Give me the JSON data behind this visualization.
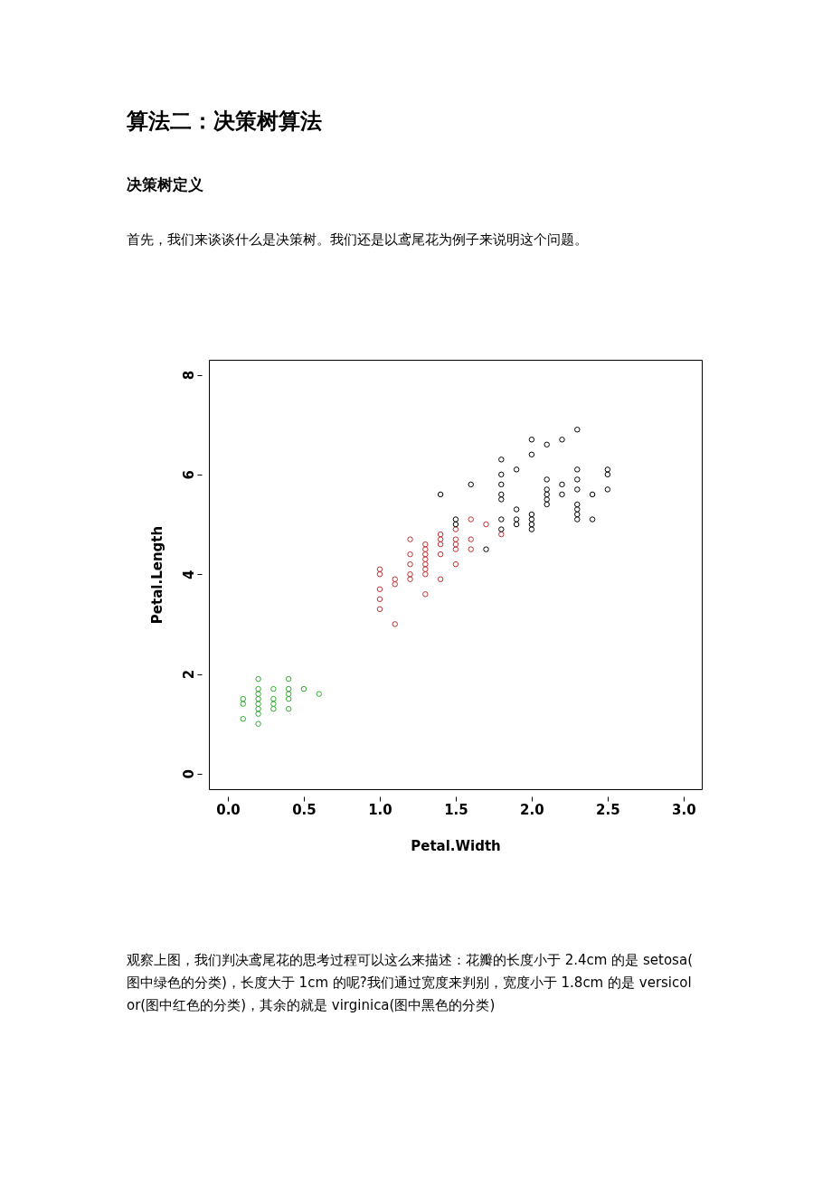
{
  "chart_data": {
    "type": "scatter",
    "title": "算法二：决策树算法",
    "subtitle": "决策树定义",
    "annotations": [
      "首先，我们来谈谈什么是决策树。我们还是以鸢尾花为例子来说明这个问题。",
      "观察上图，我们判决鸢尾花的思考过程可以这么来描述：花瓣的长度小于 2.4cm 的是 setosa(图中绿色的分类)，长度大于 1cm 的呢?我们通过宽度来判别，宽度小于 1.8cm 的是 versicolor(图中红色的分类)，其余的就是 virginica(图中黑色的分类)"
    ],
    "xlabel": "Petal.Width",
    "ylabel": "Petal.Length",
    "xlim": [
      -0.125,
      3.12
    ],
    "ylim": [
      -0.31,
      8.3
    ],
    "xticks": [
      {
        "value": 0,
        "label": "0.0"
      },
      {
        "value": 0.5,
        "label": "0.5"
      },
      {
        "value": 1,
        "label": "1.0"
      },
      {
        "value": 1.5,
        "label": "1.5"
      },
      {
        "value": 2,
        "label": "2.0"
      },
      {
        "value": 2.5,
        "label": "2.5"
      },
      {
        "value": 3,
        "label": "3.0"
      }
    ],
    "yticks": [
      0,
      2,
      4,
      6,
      8
    ],
    "marker": "circle",
    "grid": false,
    "legend": false,
    "series": [
      {
        "color": "#33aa33",
        "x": [
          0.1,
          0.1,
          0.1,
          0.2,
          0.2,
          0.2,
          0.2,
          0.2,
          0.2,
          0.2,
          0.2,
          0.3,
          0.3,
          0.3,
          0.3,
          0.4,
          0.4,
          0.4,
          0.4,
          0.4,
          0.5,
          0.6
        ],
        "values": [
          1.1,
          1.4,
          1.5,
          1.0,
          1.2,
          1.3,
          1.4,
          1.5,
          1.6,
          1.7,
          1.9,
          1.3,
          1.4,
          1.5,
          1.7,
          1.3,
          1.5,
          1.6,
          1.7,
          1.9,
          1.7,
          1.6
        ]
      },
      {
        "color": "#c03030",
        "x": [
          1.0,
          1.0,
          1.0,
          1.0,
          1.0,
          1.1,
          1.1,
          1.1,
          1.2,
          1.2,
          1.2,
          1.2,
          1.2,
          1.3,
          1.3,
          1.3,
          1.3,
          1.3,
          1.3,
          1.3,
          1.3,
          1.4,
          1.4,
          1.4,
          1.4,
          1.4,
          1.5,
          1.5,
          1.5,
          1.5,
          1.5,
          1.6,
          1.6,
          1.6,
          1.7,
          1.8
        ],
        "values": [
          3.3,
          3.5,
          3.7,
          4.0,
          4.1,
          3.0,
          3.8,
          3.9,
          3.9,
          4.0,
          4.2,
          4.4,
          4.7,
          3.6,
          4.0,
          4.1,
          4.2,
          4.3,
          4.4,
          4.5,
          4.6,
          3.9,
          4.4,
          4.6,
          4.7,
          4.8,
          4.2,
          4.5,
          4.6,
          4.7,
          4.9,
          4.5,
          4.7,
          5.1,
          5.0,
          4.8
        ]
      },
      {
        "color": "#000000",
        "x": [
          1.4,
          1.5,
          1.5,
          1.6,
          1.7,
          1.8,
          1.8,
          1.8,
          1.8,
          1.8,
          1.8,
          1.8,
          1.9,
          1.9,
          1.9,
          1.9,
          2.0,
          2.0,
          2.0,
          2.0,
          2.0,
          2.0,
          2.1,
          2.1,
          2.1,
          2.1,
          2.1,
          2.1,
          2.2,
          2.2,
          2.2,
          2.3,
          2.3,
          2.3,
          2.3,
          2.3,
          2.3,
          2.3,
          2.3,
          2.4,
          2.4,
          2.5,
          2.5,
          2.5
        ],
        "values": [
          5.6,
          5.0,
          5.1,
          5.8,
          4.5,
          4.9,
          5.1,
          5.5,
          5.6,
          5.8,
          6.0,
          6.3,
          5.0,
          5.1,
          5.3,
          6.1,
          4.9,
          5.0,
          5.1,
          5.2,
          6.4,
          6.7,
          5.4,
          5.5,
          5.6,
          5.7,
          5.9,
          6.6,
          5.6,
          5.8,
          6.7,
          5.1,
          5.2,
          5.3,
          5.4,
          5.7,
          5.9,
          6.1,
          6.9,
          5.1,
          5.6,
          5.7,
          6.0,
          6.1
        ]
      }
    ]
  }
}
